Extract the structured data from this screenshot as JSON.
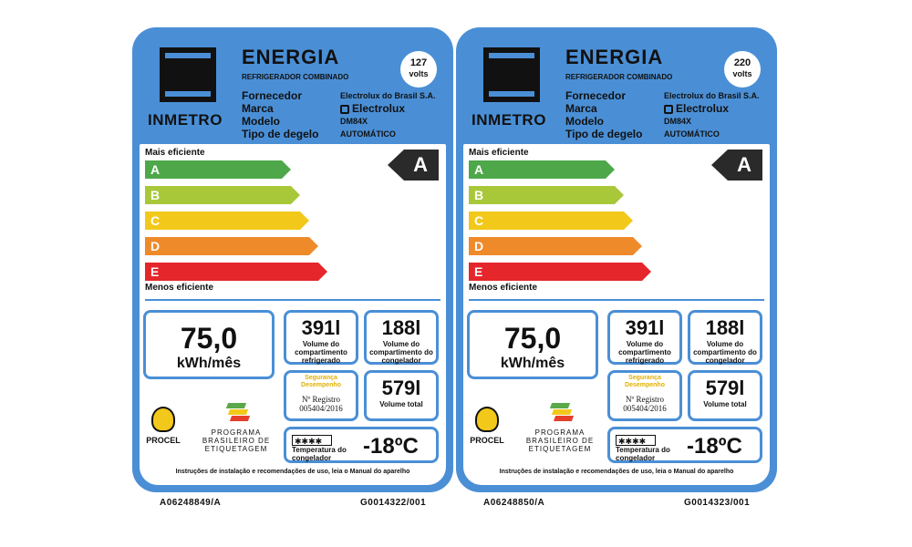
{
  "labels": [
    {
      "inmetro": "INMETRO",
      "title": "ENERGIA",
      "product_type": "REFRIGERADOR COMBINADO",
      "voltage": "127",
      "voltage_unit": "volts",
      "field_labels": [
        "Fornecedor",
        "Marca",
        "Modelo",
        "Tipo de degelo"
      ],
      "supplier": "Electrolux do Brasil S.A.",
      "brand": "Electrolux",
      "model": "DM84X",
      "defrost": "AUTOMÁTICO",
      "most_efficient": "Mais eficiente",
      "least_efficient": "Menos eficiente",
      "classes": [
        "A",
        "B",
        "C",
        "D",
        "E"
      ],
      "class_colors": [
        "#4ea84a",
        "#a8c83a",
        "#f2c81a",
        "#ef8a2a",
        "#e5262a"
      ],
      "rating": "A",
      "consumption_value": "75,0",
      "consumption_unit": "kWh/mês",
      "fridge_volume": "391l",
      "fridge_volume_label": "Volume do compartimento refrigerado",
      "freezer_volume": "188l",
      "freezer_volume_label": "Volume do compartimento do congelador",
      "total_volume": "579l",
      "total_volume_label": "Volume total",
      "security_text": "Segurança Desempenho",
      "registry_label": "Nº Registro",
      "registry_number": "005404/2016",
      "freezer_stars": "✱✱✱✱",
      "temperature": "-18ºC",
      "temperature_label": "Temperatura do congelador",
      "procel": "PROCEL",
      "pbe_text": "PROGRAMA BRASILEIRO DE ETIQUETAGEM",
      "instructions": "Instruções de instalação e recomendações de uso, leia o Manual do aparelho",
      "code_left": "A06248849/A",
      "code_right": "G0014322/001"
    },
    {
      "inmetro": "INMETRO",
      "title": "ENERGIA",
      "product_type": "REFRIGERADOR COMBINADO",
      "voltage": "220",
      "voltage_unit": "volts",
      "field_labels": [
        "Fornecedor",
        "Marca",
        "Modelo",
        "Tipo de degelo"
      ],
      "supplier": "Electrolux do Brasil S.A.",
      "brand": "Electrolux",
      "model": "DM84X",
      "defrost": "AUTOMÁTICO",
      "most_efficient": "Mais eficiente",
      "least_efficient": "Menos eficiente",
      "classes": [
        "A",
        "B",
        "C",
        "D",
        "E"
      ],
      "class_colors": [
        "#4ea84a",
        "#a8c83a",
        "#f2c81a",
        "#ef8a2a",
        "#e5262a"
      ],
      "rating": "A",
      "consumption_value": "75,0",
      "consumption_unit": "kWh/mês",
      "fridge_volume": "391l",
      "fridge_volume_label": "Volume do compartimento refrigerado",
      "freezer_volume": "188l",
      "freezer_volume_label": "Volume do compartimento do congelador",
      "total_volume": "579l",
      "total_volume_label": "Volume total",
      "security_text": "Segurança Desempenho",
      "registry_label": "Nº Registro",
      "registry_number": "005404/2016",
      "freezer_stars": "✱✱✱✱",
      "temperature": "-18ºC",
      "temperature_label": "Temperatura do congelador",
      "procel": "PROCEL",
      "pbe_text": "PROGRAMA BRASILEIRO DE ETIQUETAGEM",
      "instructions": "Instruções de instalação e recomendações de uso, leia o Manual do aparelho",
      "code_left": "A06248850/A",
      "code_right": "G0014323/001"
    }
  ],
  "colors": {
    "label_blue": "#4a8fd6",
    "rating_bg": "#2a2a2a"
  }
}
